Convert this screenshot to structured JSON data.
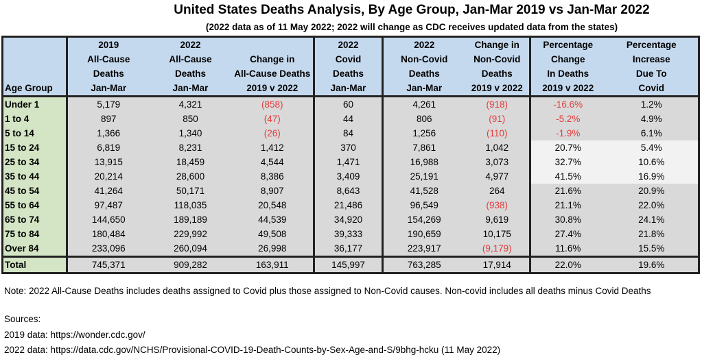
{
  "title": "United States Deaths Analysis, By Age Group, Jan-Mar 2019 vs Jan-Mar 2022",
  "subtitle": "(2022 data as of 11 May 2022; 2022 will change as CDC receives updated data from the states)",
  "headers": [
    [
      "",
      "",
      "",
      "Age Group"
    ],
    [
      "2019",
      "All-Cause",
      "Deaths",
      "Jan-Mar"
    ],
    [
      "2022",
      "All-Cause",
      "Deaths",
      "Jan-Mar"
    ],
    [
      "",
      "Change in",
      "All-Cause Deaths",
      "2019 v 2022"
    ],
    [
      "2022",
      "Covid",
      "Deaths",
      "Jan-Mar"
    ],
    [
      "2022",
      "Non-Covid",
      "Deaths",
      "Jan-Mar"
    ],
    [
      "Change in",
      "Non-Covid",
      "Deaths",
      "2019 v 2022"
    ],
    [
      "Percentage",
      "Change",
      "In Deaths",
      "2019 v 2022"
    ],
    [
      "Percentage",
      "Increase",
      "Due To",
      "Covid"
    ]
  ],
  "rows": [
    [
      "Under 1",
      "5,179",
      "4,321",
      "(858)",
      "60",
      "4,261",
      "(918)",
      "-16.6%",
      "1.2%"
    ],
    [
      "1 to 4",
      "897",
      "850",
      "(47)",
      "44",
      "806",
      "(91)",
      "-5.2%",
      "4.9%"
    ],
    [
      "5 to 14",
      "1,366",
      "1,340",
      "(26)",
      "84",
      "1,256",
      "(110)",
      "-1.9%",
      "6.1%"
    ],
    [
      "15 to 24",
      "6,819",
      "8,231",
      "1,412",
      "370",
      "7,861",
      "1,042",
      "20.7%",
      "5.4%"
    ],
    [
      "25 to 34",
      "13,915",
      "18,459",
      "4,544",
      "1,471",
      "16,988",
      "3,073",
      "32.7%",
      "10.6%"
    ],
    [
      "35 to 44",
      "20,214",
      "28,600",
      "8,386",
      "3,409",
      "25,191",
      "4,977",
      "41.5%",
      "16.9%"
    ],
    [
      "45 to 54",
      "41,264",
      "50,171",
      "8,907",
      "8,643",
      "41,528",
      "264",
      "21.6%",
      "20.9%"
    ],
    [
      "55 to 64",
      "97,487",
      "118,035",
      "20,548",
      "21,486",
      "96,549",
      "(938)",
      "21.1%",
      "22.0%"
    ],
    [
      "65 to 74",
      "144,650",
      "189,189",
      "44,539",
      "34,920",
      "154,269",
      "9,619",
      "30.8%",
      "24.1%"
    ],
    [
      "75 to 84",
      "180,484",
      "229,992",
      "49,508",
      "39,333",
      "190,659",
      "10,175",
      "27.4%",
      "21.8%"
    ],
    [
      "Over 84",
      "233,096",
      "260,094",
      "26,998",
      "36,177",
      "223,917",
      "(9,179)",
      "11.6%",
      "15.5%"
    ]
  ],
  "total": [
    "Total",
    "745,371",
    "909,282",
    "163,911",
    "145,997",
    "763,285",
    "17,914",
    "22.0%",
    "19.6%"
  ],
  "note": "Note: 2022 All-Cause Deaths includes deaths assigned to Covid plus those assigned to Non-Covid causes.  Non-covid includes all deaths minus Covid Deaths",
  "sources_label": "Sources:",
  "source_2019": "2019 data:  https://wonder.cdc.gov/",
  "source_2022": "2022 data:  https://data.cdc.gov/NCHS/Provisional-COVID-19-Death-Counts-by-Sex-Age-and-S/9bhg-hcku (11 May 2022)",
  "colors": {
    "header": "#c5d9ee",
    "age": "#d3e5c5",
    "cell": "#d9d9d9",
    "negative": "#e23b3b"
  }
}
